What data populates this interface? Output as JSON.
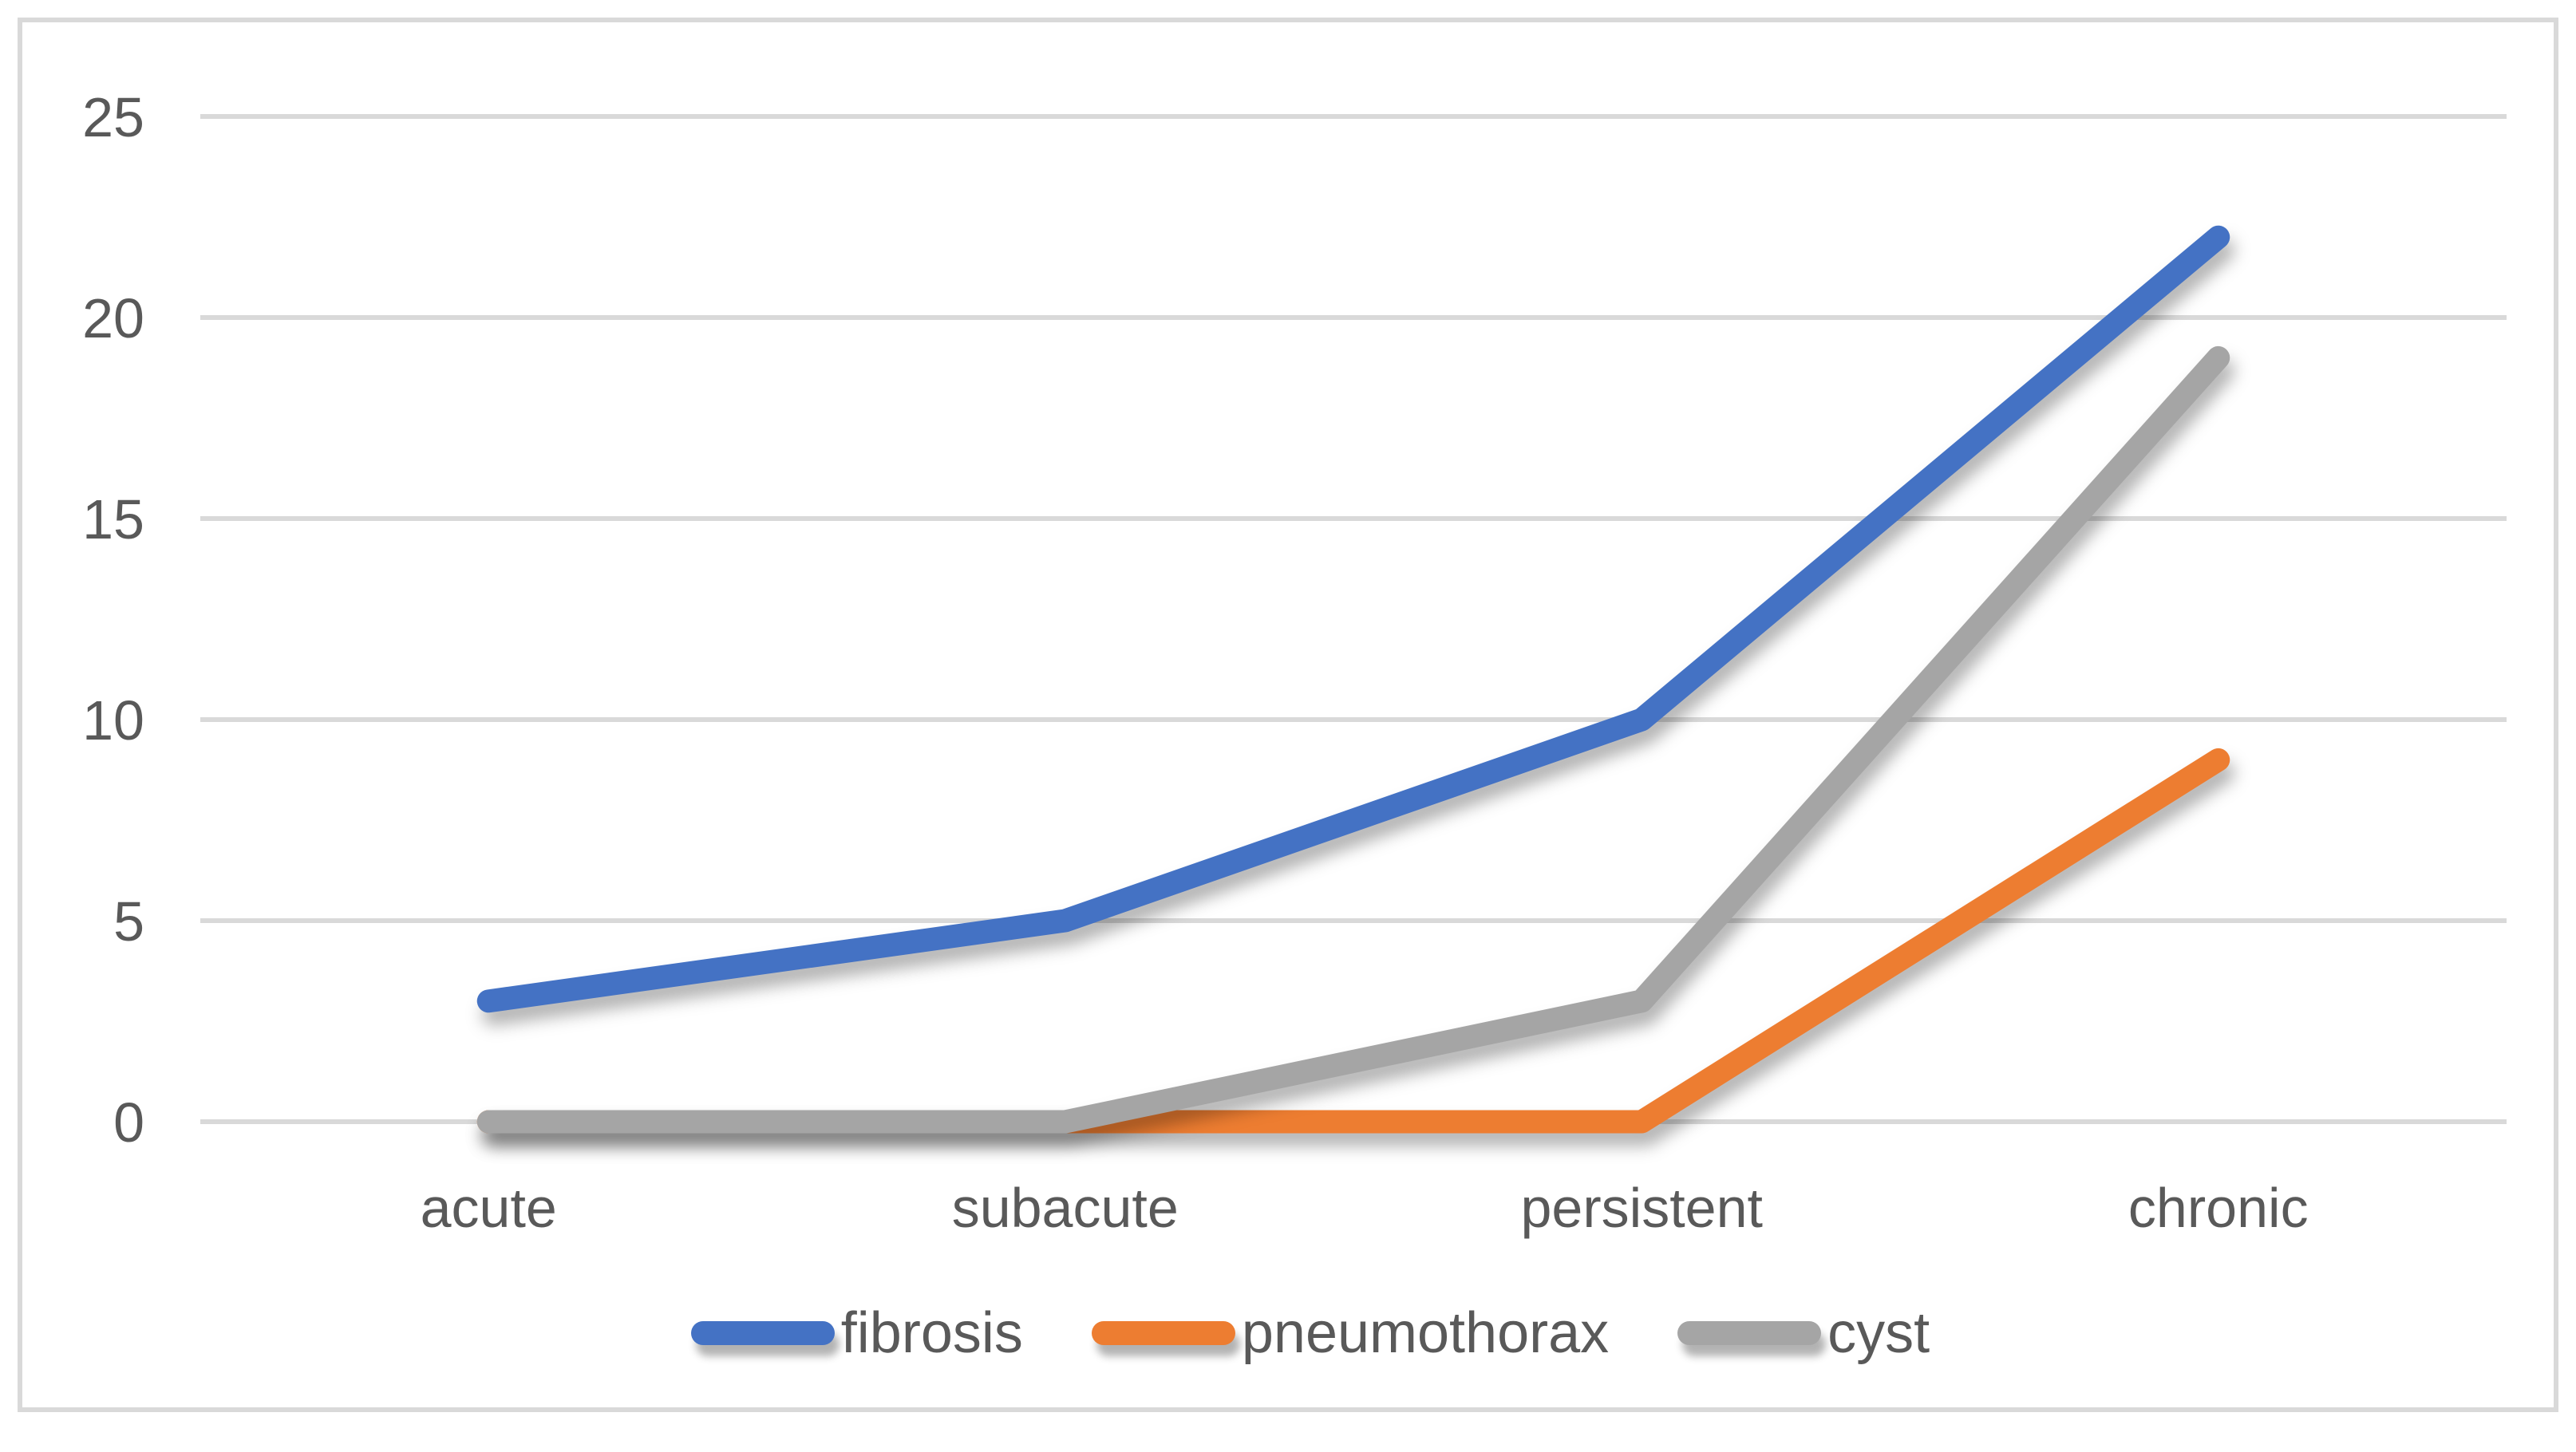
{
  "chart_data": {
    "type": "line",
    "title": "",
    "xlabel": "",
    "ylabel": "",
    "categories": [
      "acute",
      "subacute",
      "persistent",
      "chronic"
    ],
    "series": [
      {
        "name": "fibrosis",
        "color": "#4472C4",
        "values": [
          3,
          5,
          10,
          22
        ]
      },
      {
        "name": "pneumothorax",
        "color": "#ED7D31",
        "values": [
          0,
          0,
          0,
          9
        ]
      },
      {
        "name": "cyst",
        "color": "#A5A5A5",
        "values": [
          0,
          0,
          3,
          19
        ]
      }
    ],
    "ylim": [
      0,
      25
    ],
    "yticks": [
      0,
      5,
      10,
      15,
      20,
      25
    ],
    "grid": "horizontal",
    "legend_position": "bottom",
    "colors": {
      "gridline": "#D9D9D9",
      "frame_border": "#D9D9D9",
      "tick_text": "#595959",
      "background": "#FFFFFF"
    }
  }
}
